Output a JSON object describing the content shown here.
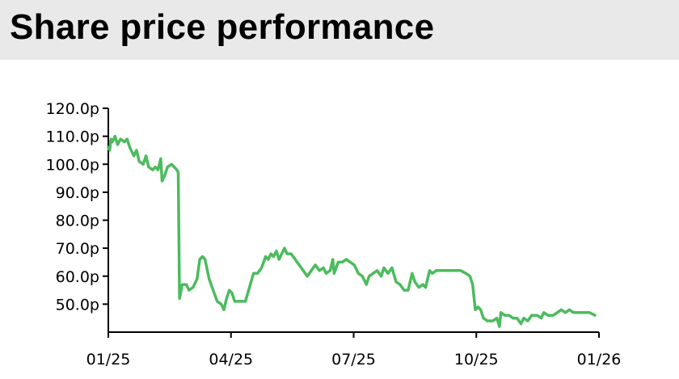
{
  "title": "Share price performance",
  "chart_data": {
    "type": "line",
    "title": "Share price performance",
    "xlabel": "",
    "ylabel": "",
    "ylim": [
      40,
      120
    ],
    "y_ticks": [
      "120.0p",
      "110.0p",
      "100.0p",
      "90.0p",
      "80.0p",
      "70.0p",
      "60.0p",
      "50.0p"
    ],
    "y_tick_values": [
      120,
      110,
      100,
      90,
      80,
      70,
      60,
      50
    ],
    "x_ticks": [
      "01/25",
      "04/25",
      "07/25",
      "10/25",
      "01/26"
    ],
    "xlim": [
      "2025-01-01",
      "2026-01-01"
    ],
    "grid": false,
    "line_color": "#4cbb5e",
    "series": [
      {
        "values": [
          [
            "2025-01-01",
            106
          ],
          [
            "2025-01-02",
            105
          ],
          [
            "2025-01-03",
            109
          ],
          [
            "2025-01-04",
            108
          ],
          [
            "2025-01-06",
            110
          ],
          [
            "2025-01-08",
            107
          ],
          [
            "2025-01-10",
            109
          ],
          [
            "2025-01-13",
            108
          ],
          [
            "2025-01-15",
            109
          ],
          [
            "2025-01-17",
            106
          ],
          [
            "2025-01-20",
            103
          ],
          [
            "2025-01-22",
            105
          ],
          [
            "2025-01-24",
            101
          ],
          [
            "2025-01-27",
            100
          ],
          [
            "2025-01-29",
            103
          ],
          [
            "2025-01-31",
            99
          ],
          [
            "2025-02-03",
            98
          ],
          [
            "2025-02-05",
            99
          ],
          [
            "2025-02-07",
            98
          ],
          [
            "2025-02-09",
            102
          ],
          [
            "2025-02-10",
            94
          ],
          [
            "2025-02-12",
            96
          ],
          [
            "2025-02-14",
            99
          ],
          [
            "2025-02-17",
            100
          ],
          [
            "2025-02-19",
            99
          ],
          [
            "2025-02-21",
            98
          ],
          [
            "2025-02-22",
            97
          ],
          [
            "2025-02-23",
            52
          ],
          [
            "2025-02-25",
            57
          ],
          [
            "2025-02-28",
            57
          ],
          [
            "2025-03-02",
            55
          ],
          [
            "2025-03-05",
            56
          ],
          [
            "2025-03-08",
            59
          ],
          [
            "2025-03-10",
            66
          ],
          [
            "2025-03-12",
            67
          ],
          [
            "2025-03-14",
            66
          ],
          [
            "2025-03-17",
            59
          ],
          [
            "2025-03-20",
            55
          ],
          [
            "2025-03-23",
            51
          ],
          [
            "2025-03-26",
            50
          ],
          [
            "2025-03-28",
            48
          ],
          [
            "2025-03-30",
            52
          ],
          [
            "2025-04-01",
            55
          ],
          [
            "2025-04-03",
            54
          ],
          [
            "2025-04-05",
            51
          ],
          [
            "2025-04-09",
            51
          ],
          [
            "2025-04-13",
            51
          ],
          [
            "2025-04-16",
            56
          ],
          [
            "2025-04-19",
            61
          ],
          [
            "2025-04-22",
            61
          ],
          [
            "2025-04-25",
            63
          ],
          [
            "2025-04-28",
            67
          ],
          [
            "2025-04-30",
            66
          ],
          [
            "2025-05-02",
            68
          ],
          [
            "2025-05-04",
            67
          ],
          [
            "2025-05-06",
            69
          ],
          [
            "2025-05-08",
            66
          ],
          [
            "2025-05-10",
            68
          ],
          [
            "2025-05-12",
            70
          ],
          [
            "2025-05-14",
            68
          ],
          [
            "2025-05-17",
            68
          ],
          [
            "2025-05-20",
            66
          ],
          [
            "2025-05-23",
            64
          ],
          [
            "2025-05-26",
            62
          ],
          [
            "2025-05-29",
            60
          ],
          [
            "2025-06-01",
            62
          ],
          [
            "2025-06-04",
            64
          ],
          [
            "2025-06-07",
            62
          ],
          [
            "2025-06-10",
            63
          ],
          [
            "2025-06-12",
            61
          ],
          [
            "2025-06-15",
            62
          ],
          [
            "2025-06-17",
            66
          ],
          [
            "2025-06-18",
            61
          ],
          [
            "2025-06-21",
            65
          ],
          [
            "2025-06-24",
            65
          ],
          [
            "2025-06-27",
            66
          ],
          [
            "2025-06-30",
            65
          ],
          [
            "2025-07-03",
            64
          ],
          [
            "2025-07-06",
            61
          ],
          [
            "2025-07-09",
            60
          ],
          [
            "2025-07-12",
            57
          ],
          [
            "2025-07-14",
            60
          ],
          [
            "2025-07-17",
            61
          ],
          [
            "2025-07-20",
            62
          ],
          [
            "2025-07-23",
            60
          ],
          [
            "2025-07-25",
            63
          ],
          [
            "2025-07-28",
            61
          ],
          [
            "2025-07-31",
            63
          ],
          [
            "2025-08-03",
            58
          ],
          [
            "2025-08-06",
            57
          ],
          [
            "2025-08-09",
            55
          ],
          [
            "2025-08-12",
            55
          ],
          [
            "2025-08-15",
            61
          ],
          [
            "2025-08-17",
            58
          ],
          [
            "2025-08-20",
            56
          ],
          [
            "2025-08-23",
            57
          ],
          [
            "2025-08-25",
            56
          ],
          [
            "2025-08-28",
            62
          ],
          [
            "2025-08-30",
            61
          ],
          [
            "2025-09-02",
            62
          ],
          [
            "2025-09-08",
            62
          ],
          [
            "2025-09-15",
            62
          ],
          [
            "2025-09-20",
            62
          ],
          [
            "2025-09-24",
            61
          ],
          [
            "2025-09-27",
            60
          ],
          [
            "2025-09-29",
            57
          ],
          [
            "2025-10-01",
            48
          ],
          [
            "2025-10-03",
            49
          ],
          [
            "2025-10-05",
            48
          ],
          [
            "2025-10-07",
            45
          ],
          [
            "2025-10-10",
            44
          ],
          [
            "2025-10-14",
            44
          ],
          [
            "2025-10-17",
            45
          ],
          [
            "2025-10-19",
            42
          ],
          [
            "2025-10-20",
            47
          ],
          [
            "2025-10-23",
            46
          ],
          [
            "2025-10-26",
            46
          ],
          [
            "2025-10-29",
            45
          ],
          [
            "2025-11-01",
            45
          ],
          [
            "2025-11-04",
            43
          ],
          [
            "2025-11-06",
            45
          ],
          [
            "2025-11-09",
            44
          ],
          [
            "2025-11-12",
            46
          ],
          [
            "2025-11-16",
            46
          ],
          [
            "2025-11-19",
            45
          ],
          [
            "2025-11-21",
            47
          ],
          [
            "2025-11-24",
            46
          ],
          [
            "2025-11-28",
            46
          ],
          [
            "2025-12-01",
            47
          ],
          [
            "2025-12-04",
            48
          ],
          [
            "2025-12-07",
            47
          ],
          [
            "2025-12-10",
            48
          ],
          [
            "2025-12-13",
            47
          ],
          [
            "2025-12-17",
            47
          ],
          [
            "2025-12-21",
            47
          ],
          [
            "2025-12-25",
            47
          ],
          [
            "2025-12-29",
            46
          ]
        ]
      }
    ]
  }
}
